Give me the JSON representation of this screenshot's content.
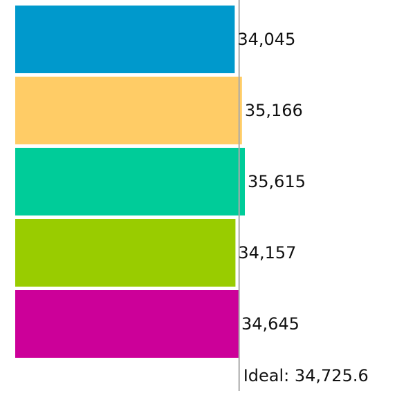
{
  "chart_data": {
    "type": "bar",
    "orientation": "horizontal",
    "categories": [
      "",
      "",
      "",
      "",
      ""
    ],
    "values": [
      34045,
      35166,
      35615,
      34157,
      34645
    ],
    "value_labels": [
      "34,045",
      "35,166",
      "35,615",
      "34,157",
      "34,645"
    ],
    "colors": [
      "#0099cc",
      "#ffcc66",
      "#00cc99",
      "#99cc00",
      "#cc0099"
    ],
    "reference_line": {
      "value": 34725.6,
      "label": "Ideal: 34,725.6",
      "color": "#aaaaaa"
    },
    "title": "",
    "xlabel": "",
    "ylabel": "",
    "xlim": [
      0,
      35615
    ],
    "grid": false,
    "legend": "none"
  }
}
